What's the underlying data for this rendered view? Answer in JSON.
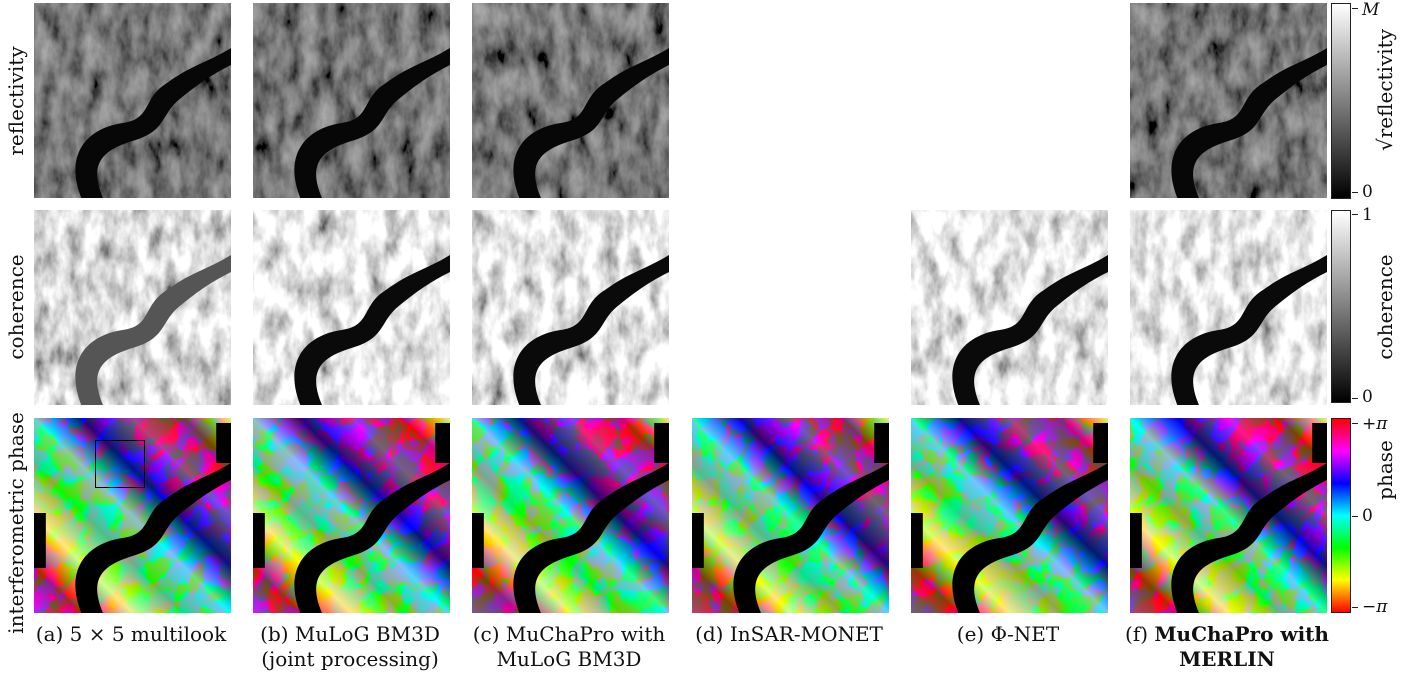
{
  "row_labels": {
    "reflectivity": "reflectivity",
    "coherence": "coherence",
    "phase": "interferometric phase"
  },
  "captions": [
    {
      "id": "a",
      "line1": "(a) 5 × 5 multilook",
      "line2": ""
    },
    {
      "id": "b",
      "line1": "(b) MuLoG BM3D",
      "line2": "(joint processing)"
    },
    {
      "id": "c",
      "line1": "(c) MuChaPro with",
      "line2": "MuLoG BM3D"
    },
    {
      "id": "d",
      "line1": "(d) InSAR-MONET",
      "line2": ""
    },
    {
      "id": "e",
      "line1": "(e) Φ-NET",
      "line2": ""
    },
    {
      "id": "f",
      "prefix": "(f) ",
      "line1": "MuChaPro with",
      "line2": "MERLIN"
    }
  ],
  "colorbars": {
    "reflectivity": {
      "label": "√reflectivity",
      "max": "M",
      "min": "0"
    },
    "coherence": {
      "label": "coherence",
      "max": "1",
      "min": "0"
    },
    "phase": {
      "label": "phase",
      "max": "+π",
      "mid": "0",
      "min": "−π"
    }
  },
  "colors": {
    "phase_map": [
      "#ff0000",
      "#ffff00",
      "#00ff00",
      "#00ffff",
      "#0000ff",
      "#ff00ff",
      "#ff0000"
    ],
    "gray_low": "#000000",
    "gray_high": "#ffffff"
  }
}
